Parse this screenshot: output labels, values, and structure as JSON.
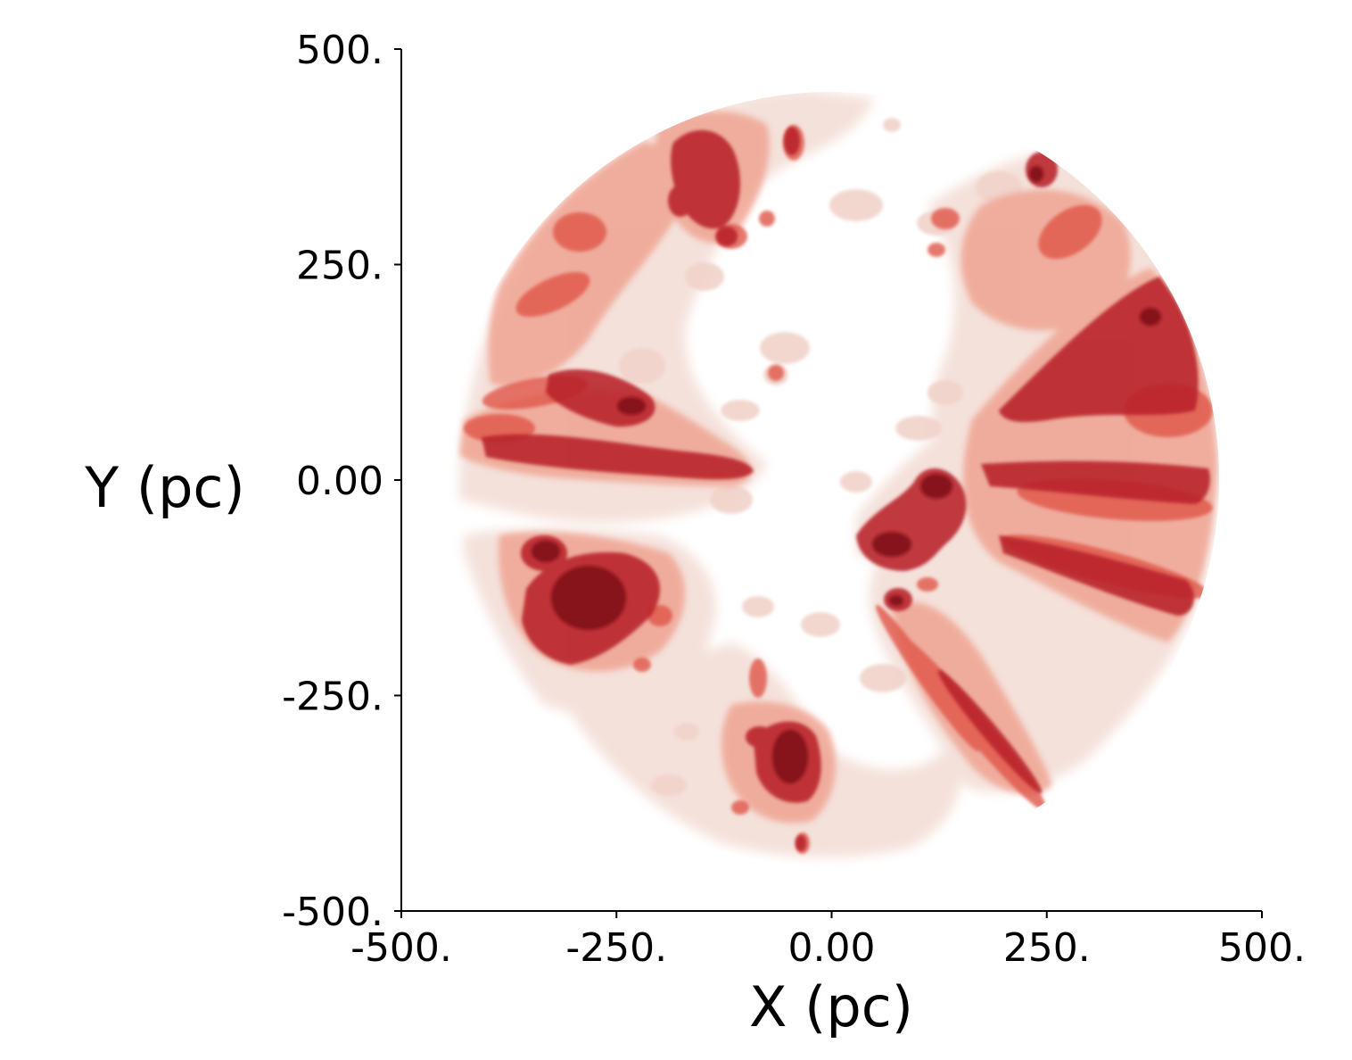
{
  "chart_data": {
    "type": "heatmap",
    "title": "",
    "xlabel": "X (pc)",
    "ylabel": "Y (pc)",
    "xlim": [
      -500,
      500
    ],
    "ylim": [
      -500,
      500
    ],
    "x_ticks": [
      {
        "value": -500,
        "label": "-500."
      },
      {
        "value": -250,
        "label": "-250."
      },
      {
        "value": 0,
        "label": "0.00"
      },
      {
        "value": 250,
        "label": "250."
      },
      {
        "value": 500,
        "label": "500."
      }
    ],
    "y_ticks": [
      {
        "value": 500,
        "label": "500."
      },
      {
        "value": 250,
        "label": "250."
      },
      {
        "value": 0,
        "label": "0.00"
      },
      {
        "value": -250,
        "label": "-250."
      },
      {
        "value": -500,
        "label": "-500."
      }
    ],
    "grid": false,
    "legend": "none",
    "render_style": "nested translucent 3D iso-surfaces (dust density) viewed face-on, clipped to a disk",
    "disk_radius": 450,
    "colors": {
      "level1": "#f2d9d1",
      "level2": "#f0a593",
      "level3": "#e0584a",
      "level4": "#b8222a",
      "level5": "#7a0f18",
      "axis": "#000000"
    },
    "features": [
      {
        "name": "clump",
        "x": 120,
        "y": -60,
        "level": 5
      },
      {
        "name": "clump",
        "x": 85,
        "y": -140,
        "level": 4
      },
      {
        "name": "clump",
        "x": -270,
        "y": -150,
        "level": 5
      },
      {
        "name": "clump",
        "x": -325,
        "y": -85,
        "level": 4
      },
      {
        "name": "clump",
        "x": -45,
        "y": -320,
        "level": 5
      },
      {
        "name": "clump",
        "x": -80,
        "y": -305,
        "level": 4
      },
      {
        "name": "clump",
        "x": -240,
        "y": 90,
        "level": 4
      },
      {
        "name": "clump",
        "x": -160,
        "y": 355,
        "level": 4
      },
      {
        "name": "clump",
        "x": -120,
        "y": 280,
        "level": 3
      },
      {
        "name": "clump",
        "x": -50,
        "y": 395,
        "level": 3
      },
      {
        "name": "clump",
        "x": 245,
        "y": 365,
        "level": 4
      },
      {
        "name": "clump",
        "x": -330,
        "y": 290,
        "level": 3
      },
      {
        "name": "clump",
        "x": -65,
        "y": 125,
        "level": 2
      },
      {
        "name": "filament",
        "x": -250,
        "y": 35,
        "level": 4
      },
      {
        "name": "filament",
        "x": 330,
        "y": 180,
        "level": 4
      },
      {
        "name": "filament",
        "x": 310,
        "y": -100,
        "level": 4
      },
      {
        "name": "filament",
        "x": 200,
        "y": -250,
        "level": 3
      }
    ]
  }
}
